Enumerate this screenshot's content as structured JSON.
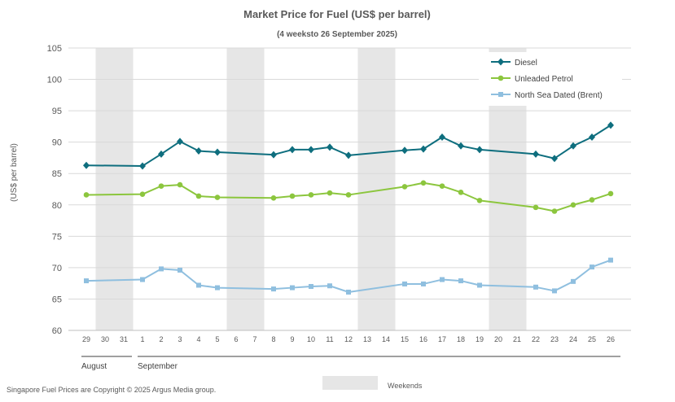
{
  "chart_data": {
    "type": "line",
    "title": "Market Price for Fuel (US$ per barrel)",
    "subtitle": "(4 weeksto 26 September 2025)",
    "ylabel": "(US$ per barrel)",
    "ylim": [
      60,
      105
    ],
    "yticks": [
      60,
      65,
      70,
      75,
      80,
      85,
      90,
      95,
      100,
      105
    ],
    "grid": true,
    "legend_position": "top-right",
    "categories": [
      "29",
      "30",
      "31",
      "1",
      "2",
      "3",
      "4",
      "5",
      "6",
      "7",
      "8",
      "9",
      "10",
      "11",
      "12",
      "13",
      "14",
      "15",
      "16",
      "17",
      "18",
      "19",
      "20",
      "21",
      "22",
      "23",
      "24",
      "25",
      "26"
    ],
    "month_labels": [
      {
        "label": "August",
        "from": "29",
        "to": "31"
      },
      {
        "label": "September",
        "from": "1",
        "to": "26"
      }
    ],
    "weekends": [
      [
        "30",
        "31"
      ],
      [
        "6",
        "7"
      ],
      [
        "13",
        "14"
      ],
      [
        "20",
        "21"
      ]
    ],
    "weekends_label": "Weekends",
    "series": [
      {
        "name": "Diesel",
        "color": "#0e6e7e",
        "marker": "diamond",
        "values": [
          86.3,
          null,
          null,
          86.2,
          88.1,
          90.1,
          88.6,
          88.4,
          null,
          null,
          88.0,
          88.8,
          88.8,
          89.2,
          87.9,
          null,
          null,
          88.7,
          88.9,
          90.8,
          89.4,
          88.8,
          null,
          null,
          88.1,
          87.4,
          89.4,
          90.8,
          92.7
        ]
      },
      {
        "name": "Unleaded Petrol",
        "color": "#8cc63e",
        "marker": "circle",
        "values": [
          81.6,
          null,
          null,
          81.7,
          83.0,
          83.2,
          81.4,
          81.2,
          null,
          null,
          81.1,
          81.4,
          81.6,
          81.9,
          81.6,
          null,
          null,
          82.9,
          83.5,
          83.0,
          82.0,
          80.7,
          null,
          null,
          79.6,
          79.0,
          80.0,
          80.8,
          81.8
        ]
      },
      {
        "name": "North Sea Dated (Brent)",
        "color": "#8fbfdf",
        "marker": "square",
        "values": [
          67.9,
          null,
          null,
          68.1,
          69.8,
          69.6,
          67.2,
          66.8,
          null,
          null,
          66.6,
          66.8,
          67.0,
          67.1,
          66.1,
          null,
          null,
          67.4,
          67.4,
          68.1,
          67.9,
          67.2,
          null,
          null,
          66.9,
          66.3,
          67.8,
          70.1,
          71.2
        ]
      }
    ]
  },
  "footer": {
    "copyright": "Singapore Fuel Prices are Copyright © 2025 Argus Media group."
  }
}
